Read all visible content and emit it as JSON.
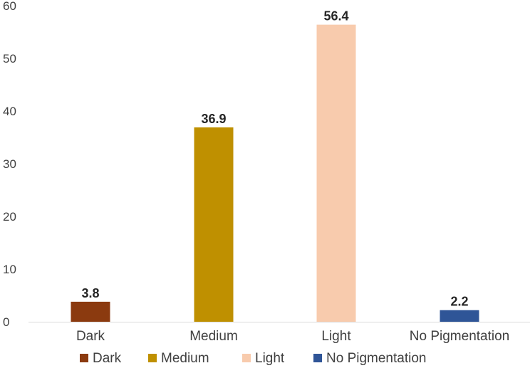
{
  "chart_data": {
    "type": "bar",
    "title": "",
    "xlabel": "",
    "ylabel": "",
    "categories": [
      "Dark",
      "Medium",
      "Light",
      "No Pigmentation"
    ],
    "values": [
      3.8,
      36.9,
      56.4,
      2.2
    ],
    "value_labels": [
      "3.8",
      "36.9",
      "56.4",
      "2.2"
    ],
    "colors": [
      "#8B3A0F",
      "#BF9000",
      "#F8CBAD",
      "#2F5597"
    ],
    "ylim": [
      0,
      60
    ],
    "yticks": [
      "0",
      "10",
      "20",
      "30",
      "40",
      "50",
      "60"
    ],
    "grid": false,
    "legend": {
      "position": "bottom",
      "entries": [
        "Dark",
        "Medium",
        "Light",
        "No Pigmentation"
      ]
    }
  }
}
